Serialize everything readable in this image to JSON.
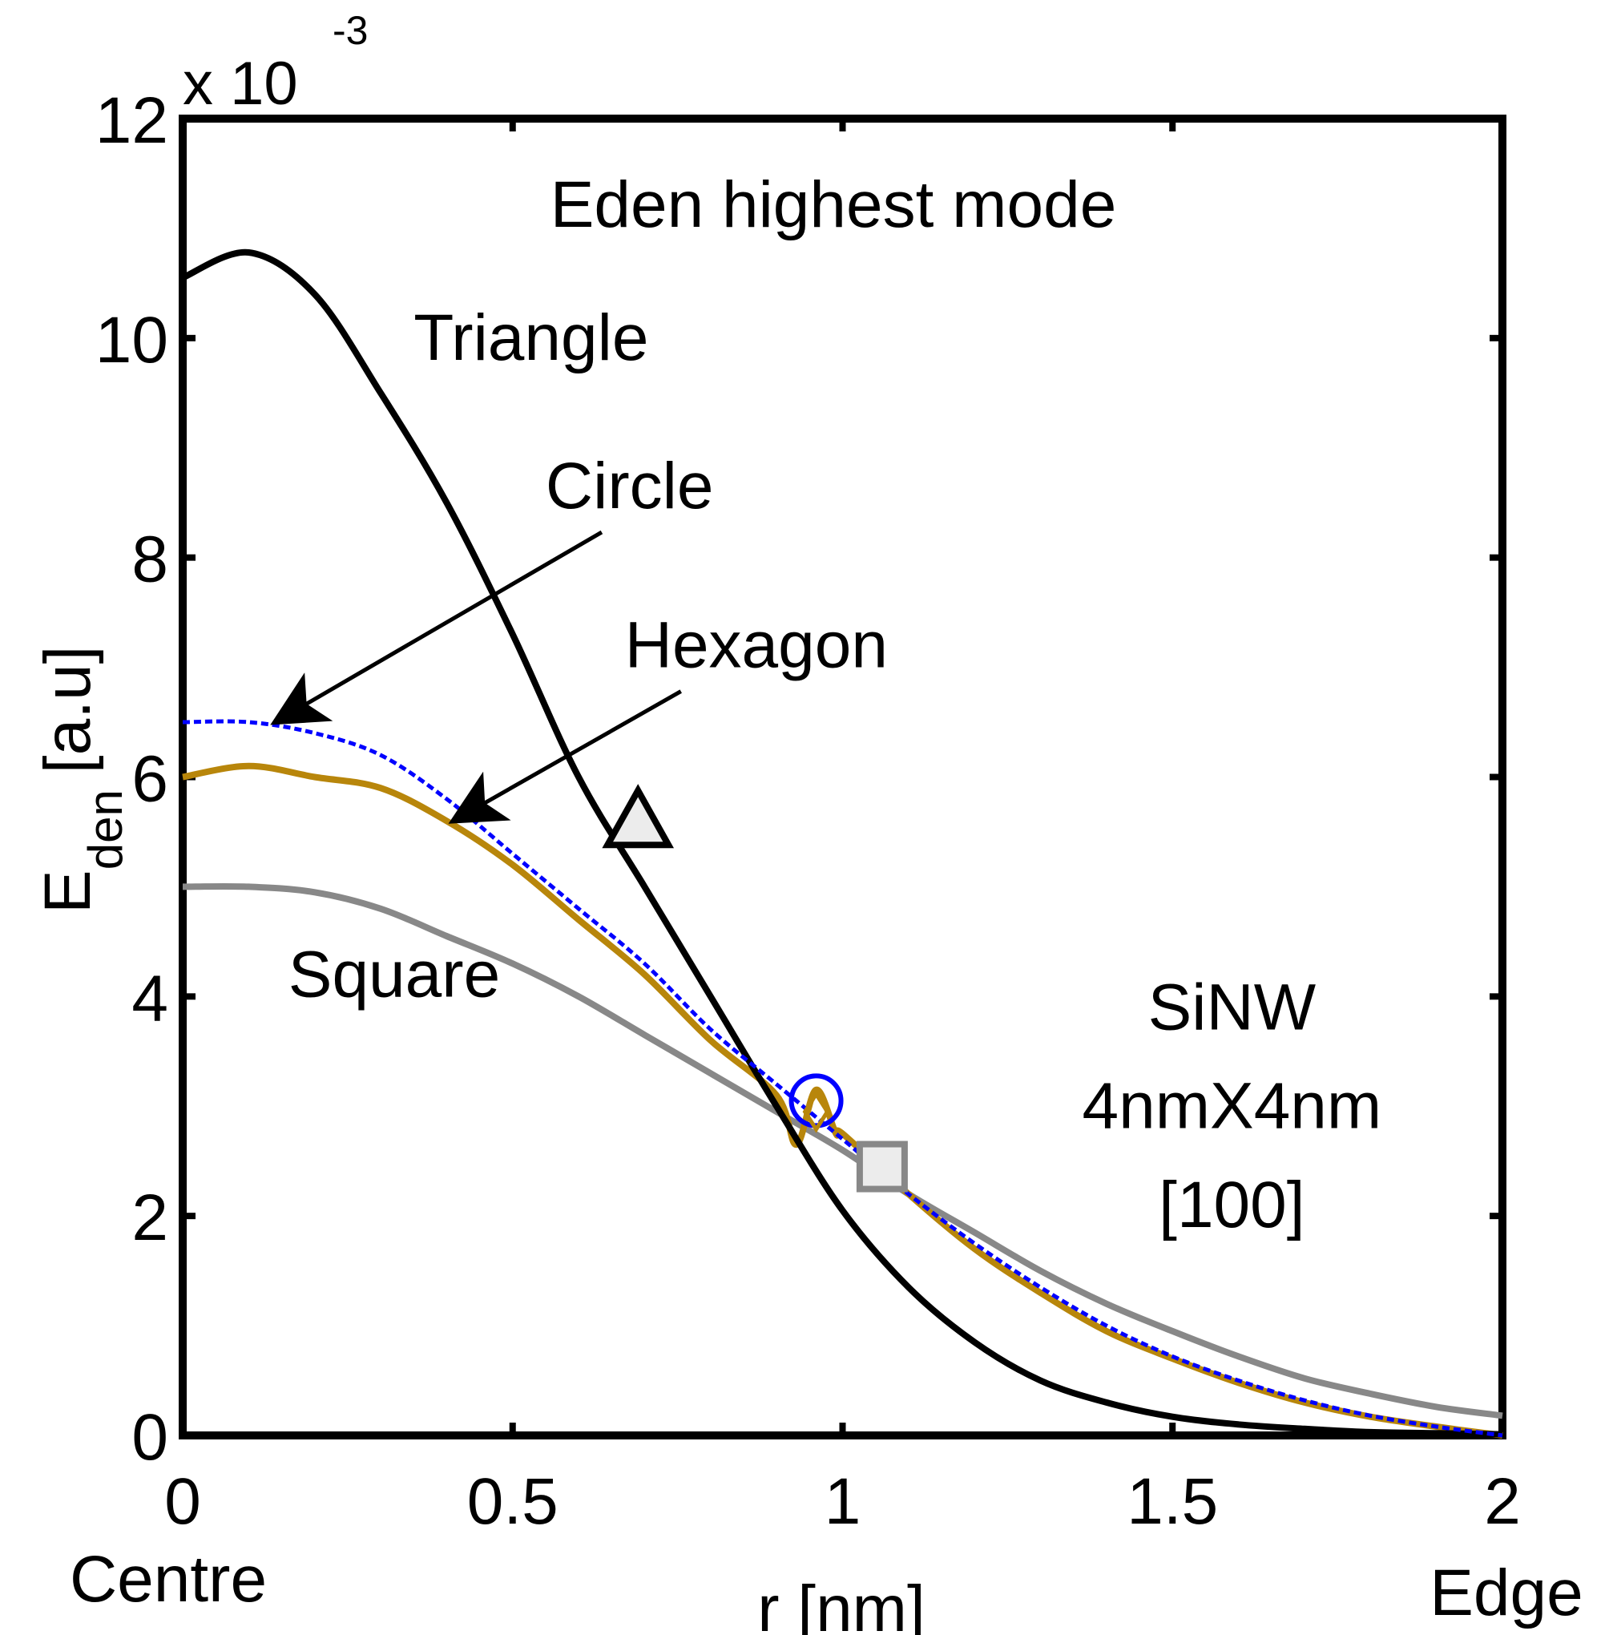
{
  "chart_data": {
    "type": "line",
    "title": "Eden highest mode",
    "xlabel": "r [nm]",
    "ylabel_main": "E",
    "ylabel_sub": "den",
    "ylabel_unit": "[a.u]",
    "y_exponent_base": "x 10",
    "y_exponent_power": "-3",
    "xlim": [
      0,
      2
    ],
    "ylim": [
      0,
      12
    ],
    "xticks": [
      0,
      0.5,
      1,
      1.5,
      2
    ],
    "xtick_labels": [
      "0",
      "0.5",
      "1",
      "1.5",
      "2"
    ],
    "yticks": [
      0,
      2,
      4,
      6,
      8,
      10,
      12
    ],
    "ytick_labels": [
      "0",
      "2",
      "4",
      "6",
      "8",
      "10",
      "12"
    ],
    "x_end_labels": {
      "left": "Centre",
      "right": "Edge"
    },
    "grid": false,
    "series": [
      {
        "name": "Triangle",
        "color": "#000000",
        "style": "solid",
        "marker": "triangle",
        "marker_at": [
          0.69,
          5.6
        ],
        "x": [
          0,
          0.1,
          0.2,
          0.3,
          0.4,
          0.5,
          0.6,
          0.7,
          0.8,
          0.9,
          1.0,
          1.1,
          1.2,
          1.3,
          1.4,
          1.5,
          1.6,
          1.7,
          1.8,
          1.9,
          2.0
        ],
        "y": [
          10.55,
          10.78,
          10.4,
          9.5,
          8.5,
          7.3,
          6.0,
          5.0,
          4.0,
          3.0,
          2.05,
          1.35,
          0.85,
          0.5,
          0.3,
          0.17,
          0.1,
          0.06,
          0.03,
          0.02,
          0.01
        ]
      },
      {
        "name": "Circle",
        "color": "#0000ff",
        "style": "dotted",
        "marker": "circle",
        "marker_at": [
          0.96,
          3.05
        ],
        "x": [
          0,
          0.1,
          0.2,
          0.3,
          0.4,
          0.5,
          0.6,
          0.7,
          0.8,
          0.9,
          1.0,
          1.1,
          1.2,
          1.3,
          1.4,
          1.5,
          1.6,
          1.7,
          1.8,
          1.9,
          2.0
        ],
        "y": [
          6.5,
          6.5,
          6.4,
          6.2,
          5.8,
          5.3,
          4.8,
          4.3,
          3.7,
          3.2,
          2.7,
          2.2,
          1.75,
          1.35,
          1.0,
          0.72,
          0.5,
          0.32,
          0.18,
          0.08,
          0.0
        ]
      },
      {
        "name": "Hexagon",
        "color": "#b8860b",
        "style": "solid",
        "marker": "diamond",
        "marker_at": [
          0.96,
          2.95
        ],
        "x": [
          0,
          0.1,
          0.2,
          0.3,
          0.4,
          0.5,
          0.6,
          0.7,
          0.8,
          0.9,
          0.93,
          0.96,
          0.99,
          1.0,
          1.1,
          1.2,
          1.3,
          1.4,
          1.5,
          1.6,
          1.7,
          1.8,
          1.9,
          2.0
        ],
        "y": [
          6.0,
          6.1,
          6.0,
          5.9,
          5.6,
          5.2,
          4.7,
          4.2,
          3.6,
          3.1,
          2.65,
          3.15,
          2.75,
          2.75,
          2.2,
          1.7,
          1.3,
          0.95,
          0.7,
          0.48,
          0.3,
          0.17,
          0.08,
          0.0
        ]
      },
      {
        "name": "Square",
        "color": "#888888",
        "style": "solid",
        "marker": "square",
        "marker_at": [
          1.06,
          2.45
        ],
        "x": [
          0,
          0.1,
          0.2,
          0.3,
          0.4,
          0.5,
          0.6,
          0.7,
          0.8,
          0.9,
          1.0,
          1.1,
          1.2,
          1.3,
          1.4,
          1.5,
          1.6,
          1.7,
          1.8,
          1.9,
          2.0
        ],
        "y": [
          5.0,
          5.0,
          4.95,
          4.8,
          4.55,
          4.3,
          4.0,
          3.65,
          3.3,
          2.95,
          2.6,
          2.2,
          1.85,
          1.5,
          1.2,
          0.95,
          0.72,
          0.52,
          0.38,
          0.26,
          0.18
        ]
      }
    ],
    "annotations": [
      {
        "text": "Triangle",
        "at": [
          0.35,
          9.8
        ]
      },
      {
        "text": "Circle",
        "at": [
          0.55,
          8.45
        ],
        "arrow_to": [
          0.14,
          6.5
        ]
      },
      {
        "text": "Hexagon",
        "at": [
          0.67,
          7.0
        ],
        "arrow_to": [
          0.41,
          5.6
        ]
      },
      {
        "text": "Square",
        "at": [
          0.16,
          4.0
        ]
      },
      {
        "text": "SiNW",
        "at": [
          1.59,
          3.7
        ]
      },
      {
        "text": "4nmX4nm",
        "at": [
          1.59,
          2.8
        ]
      },
      {
        "text": "[100]",
        "at": [
          1.59,
          1.9
        ]
      }
    ]
  }
}
